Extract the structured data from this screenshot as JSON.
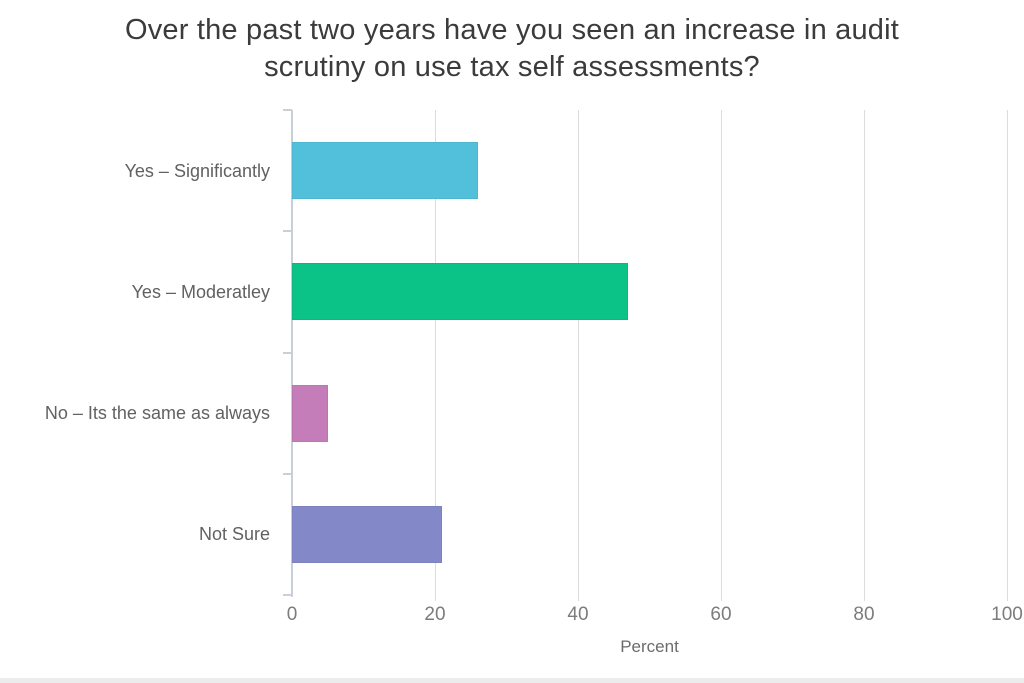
{
  "chart_data": {
    "type": "bar",
    "orientation": "horizontal",
    "title": "Over the past two years have you seen an increase in audit scrutiny on use tax self assessments?",
    "categories": [
      "Yes – Significantly",
      "Yes – Moderatley",
      "No – Its the same as always",
      "Not Sure"
    ],
    "values": [
      26,
      47,
      5,
      21
    ],
    "bar_colors": [
      "#53c0db",
      "#0bc287",
      "#c47db9",
      "#8389c8"
    ],
    "xlabel": "Percent",
    "xlim": [
      0,
      100
    ],
    "x_ticks": [
      0,
      20,
      40,
      60,
      80,
      100
    ],
    "grid": true,
    "legend": false,
    "grid_color": "#dcdcdc",
    "axis_line_color": "#c9cfd6",
    "title_color": "#3b3b3b",
    "category_label_color": "#616161",
    "tick_label_color": "#7c7c7c"
  }
}
